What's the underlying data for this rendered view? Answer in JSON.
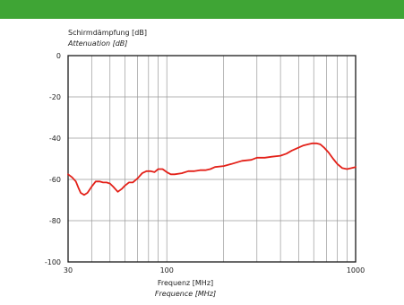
{
  "colors": {
    "banner": "#3fa535",
    "curve": "#e32119",
    "grid": "#9a9a9a",
    "frame": "#1a1a1a"
  },
  "chart_data": {
    "type": "line",
    "title": "",
    "ylabel": "Schirmdämpfung [dB]",
    "ylabel_en": "Attenuation [dB]",
    "xlabel": "Frequenz [MHz]",
    "xlabel_en": "Frequence [MHz]",
    "x_scale": "log",
    "xlim": [
      30,
      1000
    ],
    "ylim": [
      -100,
      0
    ],
    "x_ticks": [
      30,
      100,
      1000
    ],
    "x_tick_labels": [
      "30",
      "100",
      "1000"
    ],
    "x_grid": [
      30,
      40,
      50,
      60,
      70,
      80,
      90,
      100,
      200,
      300,
      400,
      500,
      600,
      700,
      800,
      900,
      1000
    ],
    "y_ticks": [
      0,
      -20,
      -40,
      -60,
      -80,
      -100
    ],
    "y_tick_labels": [
      "0",
      "-20",
      "-40",
      "-60",
      "-80",
      "-100"
    ],
    "grid": true,
    "legend": "none",
    "series": [
      {
        "x": [
          30,
          31.5,
          33,
          34,
          35,
          36.5,
          38,
          40,
          42,
          44,
          46,
          48,
          50,
          52,
          55,
          58,
          60,
          63,
          66,
          70,
          74,
          78,
          82,
          86,
          90,
          95,
          100,
          105,
          110,
          120,
          130,
          140,
          150,
          160,
          170,
          180,
          200,
          220,
          250,
          280,
          300,
          330,
          360,
          400,
          430,
          460,
          500,
          530,
          560,
          590,
          620,
          650,
          680,
          720,
          760,
          800,
          850,
          900,
          950,
          1000
        ],
        "y": [
          -57.5,
          -59,
          -61,
          -64,
          -66.5,
          -67.5,
          -66.5,
          -63.5,
          -61,
          -61,
          -61.5,
          -61.5,
          -62,
          -63.5,
          -66,
          -64.5,
          -63,
          -61.5,
          -61.5,
          -59.5,
          -57,
          -56,
          -56,
          -56.5,
          -55,
          -55,
          -56.5,
          -57.5,
          -57.5,
          -57,
          -56,
          -56,
          -55.5,
          -55.5,
          -55,
          -54,
          -53.5,
          -52.5,
          -51,
          -50.5,
          -49.5,
          -49.5,
          -49,
          -48.5,
          -47.5,
          -46,
          -44.5,
          -43.5,
          -43,
          -42.5,
          -42.5,
          -43,
          -44.5,
          -47,
          -50,
          -52.5,
          -54.5,
          -55,
          -54.5,
          -54
        ]
      }
    ]
  }
}
